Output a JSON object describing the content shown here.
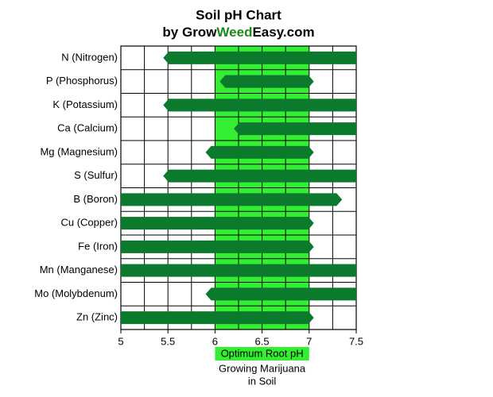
{
  "chart_data": {
    "type": "range-bar",
    "title": "Soil pH Chart",
    "subtitle": "by GrowWeedEasy.com",
    "subtitle_highlight": "Weed",
    "highlight_color": "#1a8a1a",
    "categories": [
      "N (Nitrogen)",
      "P (Phosphorus)",
      "K (Potassium)",
      "Ca (Calcium)",
      "Mg (Magnesium)",
      "S (Sulfur)",
      "B (Boron)",
      "Cu (Copper)",
      "Fe (Iron)",
      "Mn (Manganese)",
      "Mo (Molybdenum)",
      "Zn (Zinc)"
    ],
    "low": [
      5.45,
      6.05,
      5.45,
      6.2,
      5.9,
      5.45,
      5,
      5,
      5,
      5,
      5.9,
      5
    ],
    "high": [
      7.5,
      7.05,
      7.5,
      7.5,
      7.05,
      7.5,
      7.35,
      7.05,
      7.05,
      7.5,
      7.5,
      7.05
    ],
    "color": "#0b7a2c",
    "xlim": [
      5,
      7.5
    ],
    "xticks": [
      5,
      5.5,
      6,
      6.5,
      7,
      7.5
    ],
    "xminor": [
      5.25,
      5.75,
      6.25,
      6.75,
      7.25
    ],
    "grid": true,
    "optimum": {
      "range": [
        6,
        7
      ],
      "label": "Optimum Root pH",
      "color": "#33ee33"
    },
    "note": [
      "Growing Marijuana",
      "in Soil"
    ]
  }
}
